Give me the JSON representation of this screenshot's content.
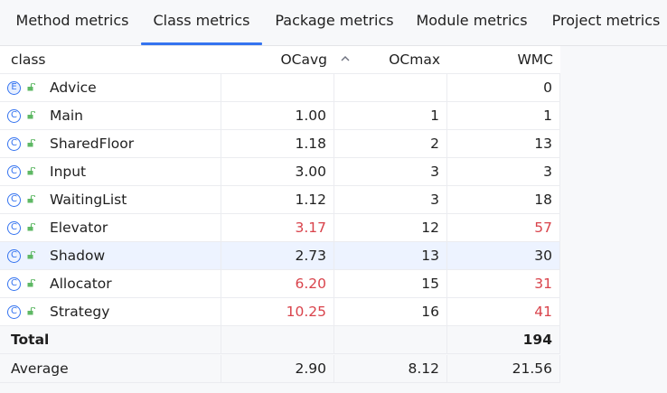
{
  "tabs": [
    {
      "label": "Method metrics"
    },
    {
      "label": "Class metrics",
      "active": true
    },
    {
      "label": "Package metrics"
    },
    {
      "label": "Module metrics"
    },
    {
      "label": "Project metrics"
    }
  ],
  "table": {
    "columns": {
      "class": "class",
      "ocavg": "OCavg",
      "ocmax": "OCmax",
      "wmc": "WMC"
    },
    "sort_icon": "chevron-up-icon",
    "rows": [
      {
        "name": "Advice",
        "kind": "E",
        "icon": "enum-icon",
        "ocavg": "",
        "ocmax": "",
        "wmc": "0"
      },
      {
        "name": "Main",
        "kind": "C",
        "icon": "class-icon",
        "ocavg": "1.00",
        "ocmax": "1",
        "wmc": "1"
      },
      {
        "name": "SharedFloor",
        "kind": "C",
        "icon": "class-icon",
        "ocavg": "1.18",
        "ocmax": "2",
        "wmc": "13"
      },
      {
        "name": "Input",
        "kind": "C",
        "icon": "class-icon",
        "ocavg": "3.00",
        "ocmax": "3",
        "wmc": "3"
      },
      {
        "name": "WaitingList",
        "kind": "C",
        "icon": "class-icon",
        "ocavg": "1.12",
        "ocmax": "3",
        "wmc": "18"
      },
      {
        "name": "Elevator",
        "kind": "C",
        "icon": "class-icon",
        "ocavg": "3.17",
        "ocmax": "12",
        "wmc": "57",
        "ocavg_red": true,
        "wmc_red": true
      },
      {
        "name": "Shadow",
        "kind": "C",
        "icon": "class-icon",
        "ocavg": "2.73",
        "ocmax": "13",
        "wmc": "30",
        "selected": true
      },
      {
        "name": "Allocator",
        "kind": "C",
        "icon": "class-icon",
        "ocavg": "6.20",
        "ocmax": "15",
        "wmc": "31",
        "ocavg_red": true,
        "wmc_red": true
      },
      {
        "name": "Strategy",
        "kind": "C",
        "icon": "class-icon",
        "ocavg": "10.25",
        "ocmax": "16",
        "wmc": "41",
        "ocavg_red": true,
        "wmc_red": true
      }
    ],
    "total": {
      "label": "Total",
      "ocavg": "",
      "ocmax": "",
      "wmc": "194"
    },
    "average": {
      "label": "Average",
      "ocavg": "2.90",
      "ocmax": "8.12",
      "wmc": "21.56"
    }
  },
  "colors": {
    "accent": "#3574f0",
    "warning_value": "#d9434b",
    "selected_row": "#edf3ff",
    "lock_icon": "#5fb865"
  }
}
